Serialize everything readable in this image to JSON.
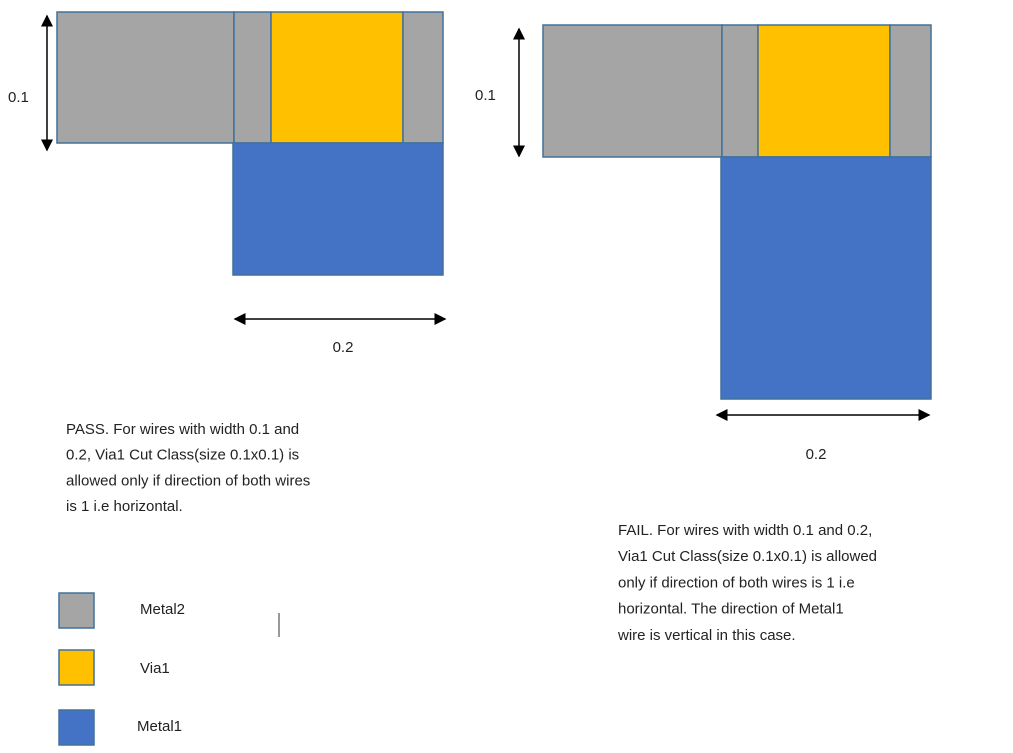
{
  "left": {
    "height_label": "0.1",
    "width_label": "0.2",
    "caption": [
      "PASS. For wires with width 0.1 and",
      "0.2, Via1 Cut Class(size 0.1x0.1) is",
      "allowed only if direction of both wires",
      "is 1 i.e horizontal."
    ]
  },
  "right": {
    "height_label": "0.1",
    "width_label": "0.2",
    "caption": [
      "FAIL. For wires with width 0.1 and 0.2,",
      "Via1 Cut Class(size 0.1x0.1) is allowed",
      "only if direction of both wires is 1 i.e",
      "horizontal. The direction of Metal1",
      "wire is vertical in this case."
    ]
  },
  "legend": [
    "Metal2",
    "Via1",
    "Metal1"
  ]
}
